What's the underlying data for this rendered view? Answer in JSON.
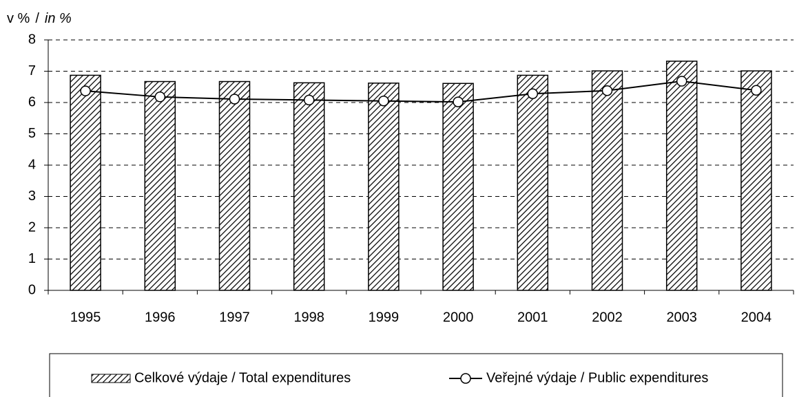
{
  "chart_data": {
    "type": "bar_line",
    "y_label": [
      "v %",
      "/",
      "in %"
    ],
    "categories": [
      "1995",
      "1996",
      "1997",
      "1998",
      "1999",
      "2000",
      "2001",
      "2002",
      "2003",
      "2004"
    ],
    "series": [
      {
        "name": "Celkové výdaje / Total expenditures",
        "type": "bar",
        "color": "#000000",
        "values": [
          6.87,
          6.67,
          6.67,
          6.63,
          6.62,
          6.61,
          6.87,
          7.01,
          7.32,
          7.01
        ]
      },
      {
        "name": "Veřejné výdaje / Public expenditures",
        "type": "line",
        "color": "#000000",
        "values": [
          6.37,
          6.18,
          6.11,
          6.08,
          6.05,
          6.02,
          6.28,
          6.38,
          6.68,
          6.39
        ]
      }
    ],
    "ylim": [
      0,
      8
    ],
    "yticks": [
      0,
      1,
      2,
      3,
      4,
      5,
      6,
      7,
      8
    ],
    "grid": true,
    "legend": "bottom"
  }
}
